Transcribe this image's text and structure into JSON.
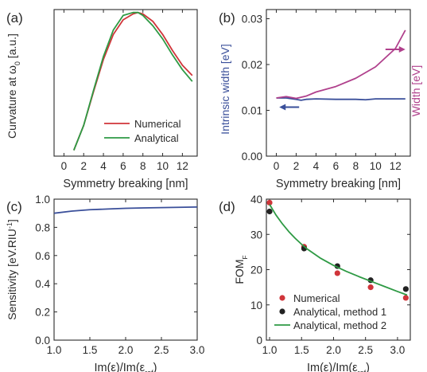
{
  "colors": {
    "numerical": "#d0353a",
    "analytical": "#2e9a44",
    "intrinsic": "#3a4f9a",
    "width": "#b0408c",
    "sensitivity": "#3a4f9a",
    "method1": "#222222",
    "axis": "#2a2a2a"
  },
  "chart_data": [
    {
      "panel": "(a)",
      "type": "line",
      "xlabel": "Symmetry breaking [nm]",
      "ylabel": "Curvature at ω₀ [a.u.]",
      "xlim": [
        -1,
        13.5
      ],
      "ylim": [
        0,
        1
      ],
      "xticks": [
        "0",
        "2",
        "4",
        "6",
        "8",
        "10",
        "12"
      ],
      "yticks": [],
      "legend_position": "bottom-right",
      "series": [
        {
          "name": "Numerical",
          "x": [
            1,
            2,
            3,
            4,
            5,
            6,
            7,
            7.5,
            8,
            9,
            10,
            11,
            12,
            13
          ],
          "y": [
            0.04,
            0.21,
            0.44,
            0.66,
            0.83,
            0.93,
            0.97,
            0.98,
            0.97,
            0.92,
            0.83,
            0.72,
            0.62,
            0.55
          ]
        },
        {
          "name": "Analytical",
          "x": [
            1,
            2,
            3,
            4,
            5,
            6,
            7,
            7.5,
            8,
            9,
            10,
            11,
            12,
            13
          ],
          "y": [
            0.04,
            0.21,
            0.45,
            0.68,
            0.86,
            0.96,
            0.98,
            0.98,
            0.96,
            0.89,
            0.8,
            0.69,
            0.59,
            0.51
          ]
        }
      ]
    },
    {
      "panel": "(b)",
      "type": "line",
      "xlabel": "Symmetry breaking [nm]",
      "ylabel": "Intrinsic width [eV]",
      "y2label": "Width [eV]",
      "xlim": [
        -1,
        13.5
      ],
      "ylim": [
        0,
        0.032
      ],
      "xticks": [
        "0",
        "2",
        "4",
        "6",
        "8",
        "10",
        "12"
      ],
      "yticks": [
        "0.00",
        "0.01",
        "0.02",
        "0.03"
      ],
      "series": [
        {
          "name": "Intrinsic width",
          "axis": "left",
          "x": [
            0,
            1,
            2,
            2.5,
            3,
            4,
            6,
            8,
            9,
            10,
            12,
            13
          ],
          "y": [
            0.0127,
            0.0127,
            0.0124,
            0.0122,
            0.0124,
            0.0125,
            0.0124,
            0.0124,
            0.0123,
            0.0125,
            0.0125,
            0.0125
          ]
        },
        {
          "name": "Width",
          "axis": "right",
          "x": [
            0,
            1,
            2,
            3,
            4,
            6,
            8,
            10,
            12,
            13
          ],
          "y": [
            0.0127,
            0.013,
            0.0126,
            0.0131,
            0.014,
            0.0152,
            0.017,
            0.0195,
            0.0235,
            0.0275
          ]
        }
      ]
    },
    {
      "panel": "(c)",
      "type": "line",
      "xlabel": "Im(ε)/Im(εref)",
      "ylabel": "Sensitivity [eV.RIU⁻¹]",
      "xlim": [
        1.0,
        3.0
      ],
      "ylim": [
        0,
        1.0
      ],
      "xticks": [
        "1.0",
        "1.5",
        "2.0",
        "2.5",
        "3.0"
      ],
      "yticks": [
        "0.0",
        "0.2",
        "0.4",
        "0.6",
        "0.8",
        "1.0"
      ],
      "series": [
        {
          "name": "Sensitivity",
          "x": [
            1.0,
            1.25,
            1.5,
            1.75,
            2.0,
            2.25,
            2.5,
            2.75,
            3.0
          ],
          "y": [
            0.9,
            0.915,
            0.925,
            0.93,
            0.935,
            0.938,
            0.94,
            0.942,
            0.944
          ]
        }
      ]
    },
    {
      "panel": "(d)",
      "type": "scatter",
      "xlabel": "Im(ε)/Im(εref)",
      "ylabel": "FOMF",
      "xlim": [
        0.95,
        3.2
      ],
      "ylim": [
        0,
        40
      ],
      "xticks": [
        "1.0",
        "1.5",
        "2.0",
        "2.5",
        "3.0"
      ],
      "yticks": [
        "0",
        "10",
        "20",
        "30",
        "40"
      ],
      "legend_position": "bottom-left",
      "series": [
        {
          "name": "Numerical",
          "kind": "points",
          "x": [
            1.0,
            1.54,
            2.06,
            2.58,
            3.13
          ],
          "y": [
            39.0,
            26.5,
            19.0,
            15.0,
            12.0
          ]
        },
        {
          "name": "Analytical, method 1",
          "kind": "points",
          "x": [
            1.0,
            1.54,
            2.06,
            2.58,
            3.13
          ],
          "y": [
            36.5,
            26.0,
            21.0,
            17.0,
            14.5
          ]
        },
        {
          "name": "Analytical, method 2",
          "kind": "line",
          "x": [
            1.0,
            1.1,
            1.2,
            1.3,
            1.4,
            1.5,
            1.6,
            1.8,
            2.0,
            2.2,
            2.4,
            2.6,
            2.8,
            3.0,
            3.15
          ],
          "y": [
            38.5,
            35.5,
            33.0,
            30.8,
            28.9,
            27.2,
            25.7,
            23.2,
            21.2,
            19.5,
            18.0,
            16.6,
            15.2,
            13.8,
            12.8
          ]
        }
      ]
    }
  ]
}
